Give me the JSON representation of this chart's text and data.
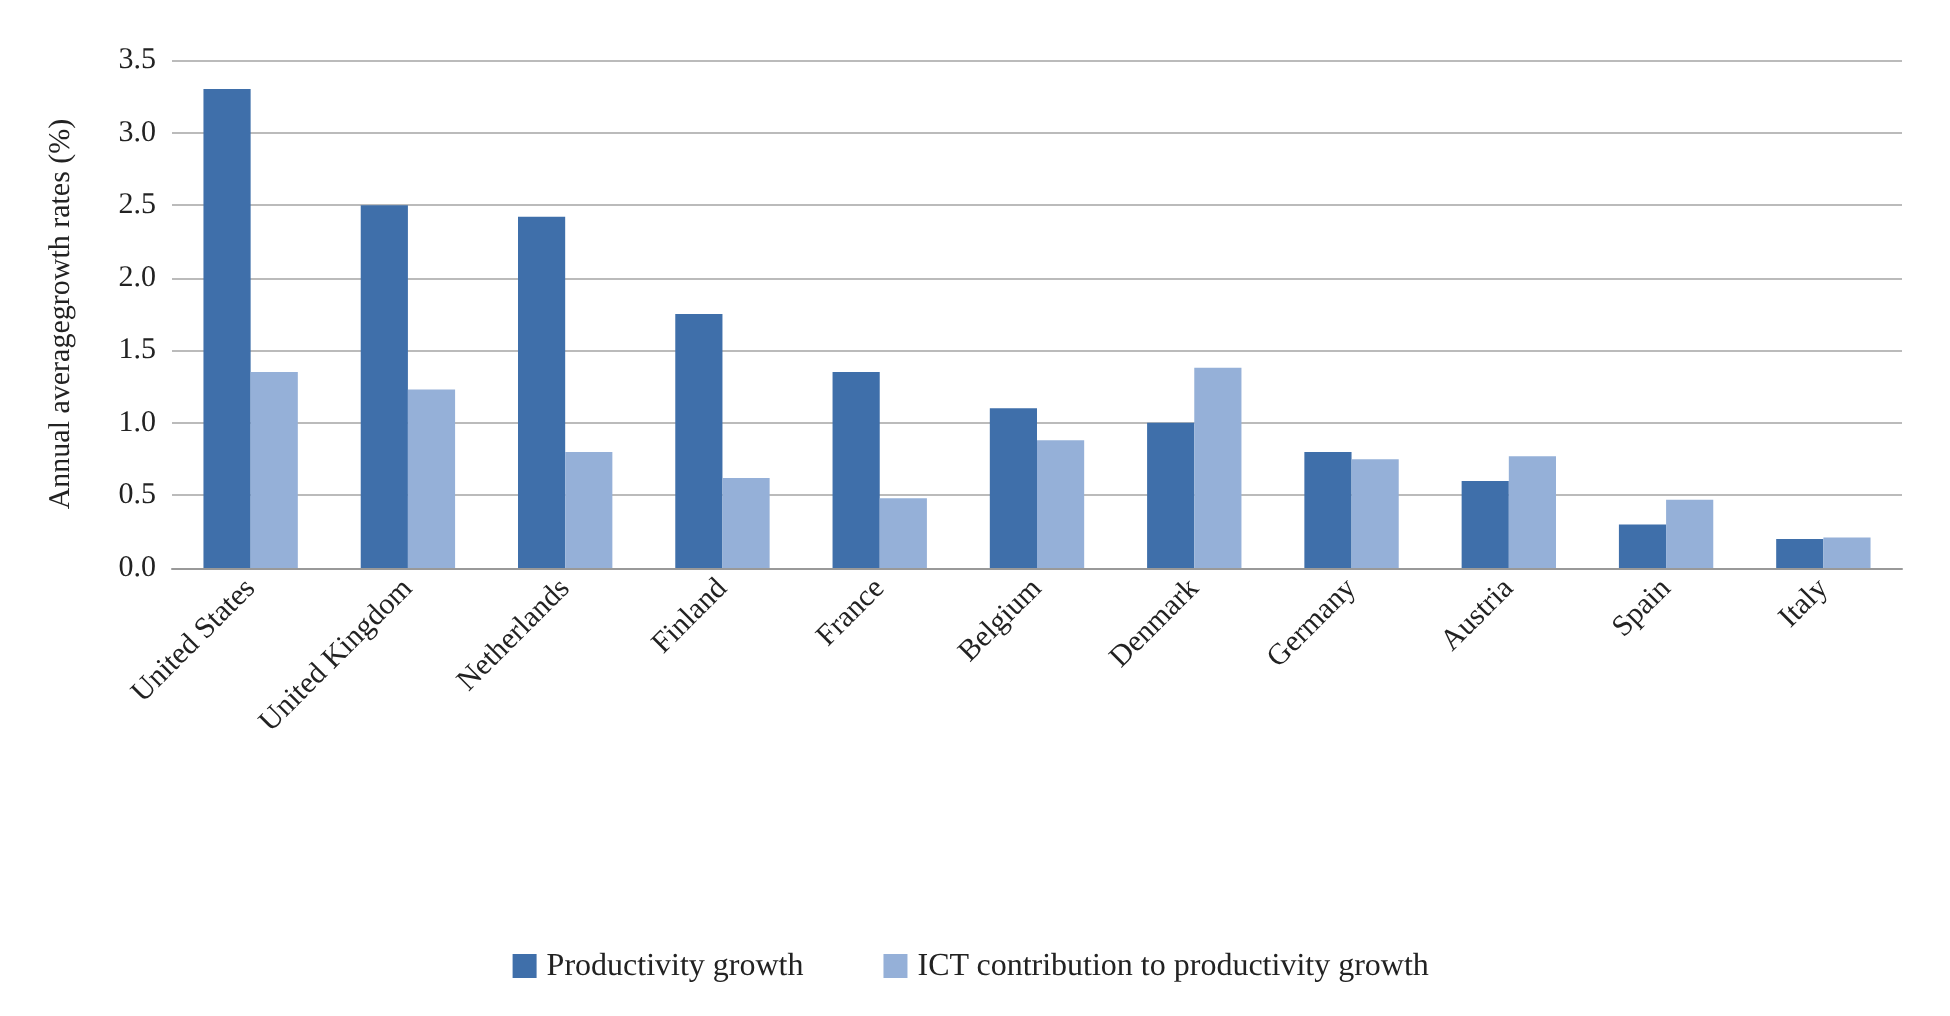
{
  "chart_data": {
    "type": "bar",
    "ylabel": "Annual averagegrowth rates (%)",
    "categories": [
      "United States",
      "United Kingdom",
      "Netherlands",
      "Finland",
      "France",
      "Belgium",
      "Denmark",
      "Germany",
      "Austria",
      "Spain",
      "Italy"
    ],
    "series": [
      {
        "name": "Productivity growth",
        "color": "#3f6faa",
        "values": [
          3.3,
          2.5,
          2.42,
          1.75,
          1.35,
          1.1,
          1.0,
          0.8,
          0.6,
          0.3,
          0.2
        ]
      },
      {
        "name": "ICT contribution to productivity growth",
        "color": "#95b0d8",
        "values": [
          1.35,
          1.23,
          0.8,
          0.62,
          0.48,
          0.88,
          1.38,
          0.75,
          0.77,
          0.47,
          0.21
        ]
      }
    ],
    "ylim": [
      0,
      3.5
    ],
    "yticks": [
      {
        "value": 0,
        "label": "0.0"
      },
      0.5,
      {
        "value": 1,
        "label": "1.0"
      },
      1.5,
      {
        "value": 2,
        "label": "2.0"
      },
      2.5,
      {
        "value": 3,
        "label": "3.0"
      },
      3.5
    ],
    "grid": "y",
    "legend": "bottom"
  }
}
